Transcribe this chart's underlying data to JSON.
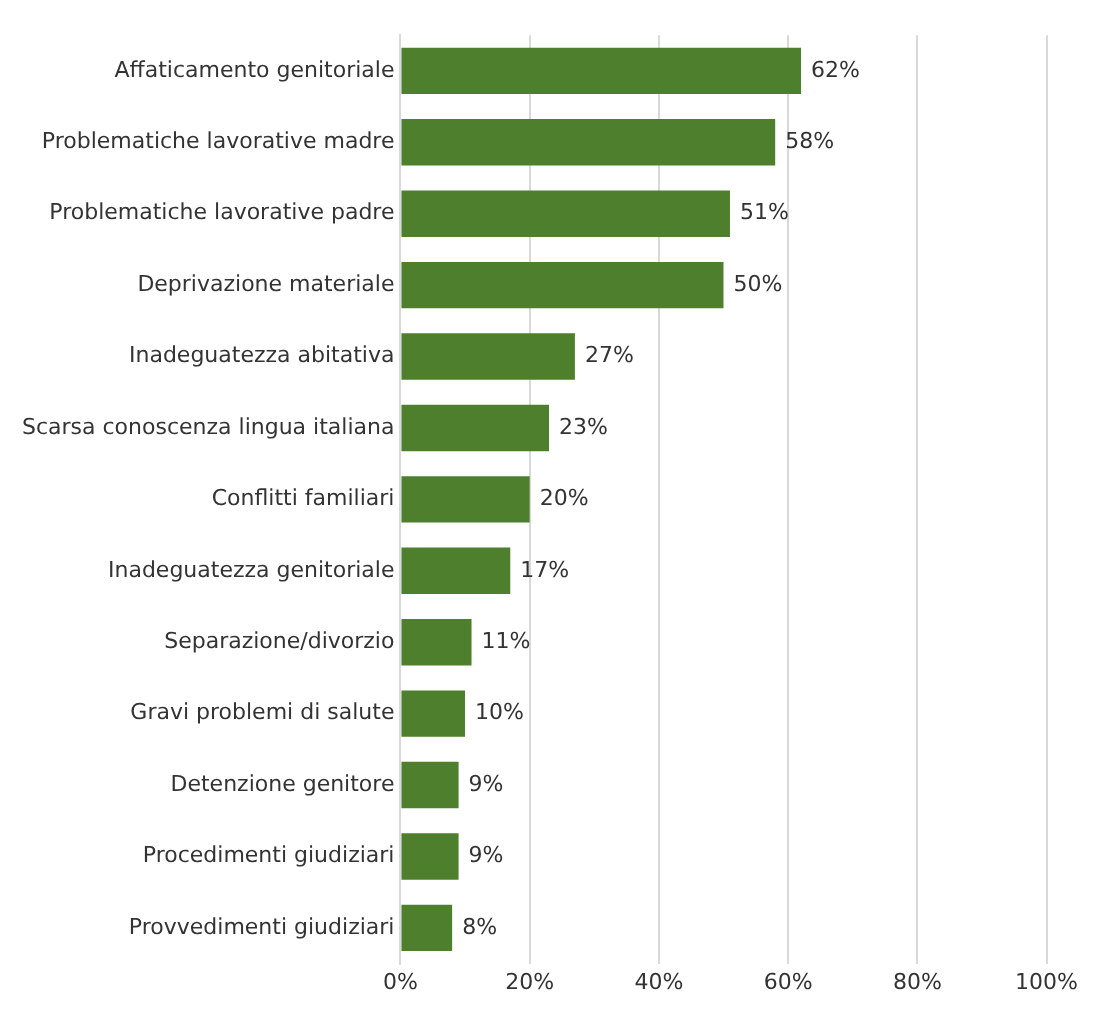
{
  "chart_data": {
    "type": "bar",
    "orientation": "horizontal",
    "categories": [
      "Affaticamento genitoriale",
      "Problematiche lavorative madre",
      "Problematiche lavorative padre",
      "Deprivazione materiale",
      "Inadeguatezza abitativa",
      "Scarsa conoscenza lingua italiana",
      "Conflitti familiari",
      "Inadeguatezza genitoriale",
      "Separazione/divorzio",
      "Gravi problemi di salute",
      "Detenzione genitore",
      "Procedimenti giudiziari",
      "Provvedimenti giudiziari"
    ],
    "values": [
      62,
      58,
      51,
      50,
      27,
      23,
      20,
      17,
      11,
      10,
      9,
      9,
      8
    ],
    "value_labels": [
      "62%",
      "58%",
      "51%",
      "50%",
      "27%",
      "23%",
      "20%",
      "17%",
      "11%",
      "10%",
      "9%",
      "9%",
      "8%"
    ],
    "color": "#4e7f2c",
    "xlim": [
      0,
      100
    ],
    "xticks": [
      {
        "value": 0,
        "label": "0%"
      },
      {
        "value": 20,
        "label": "20%"
      },
      {
        "value": 40,
        "label": "40%"
      },
      {
        "value": 60,
        "label": "60%"
      },
      {
        "value": 80,
        "label": "80%"
      },
      {
        "value": 100,
        "label": "100%"
      }
    ],
    "grid": "x",
    "legend": false
  }
}
